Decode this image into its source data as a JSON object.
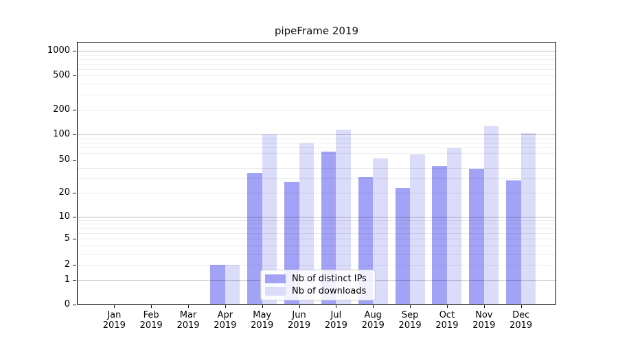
{
  "chart_data": {
    "type": "bar",
    "title": "pipeFrame 2019",
    "categories": [
      "Jan",
      "Feb",
      "Mar",
      "Apr",
      "May",
      "Jun",
      "Jul",
      "Aug",
      "Sep",
      "Oct",
      "Nov",
      "Dec"
    ],
    "year_label": "2019",
    "series": [
      {
        "name": "Nb of distinct IPs",
        "color": "#a2a2f6",
        "values": [
          0,
          0,
          0,
          2,
          35,
          27,
          62,
          31,
          23,
          42,
          39,
          28
        ]
      },
      {
        "name": "Nb of downloads",
        "color": "#dbdbfa",
        "values": [
          0,
          0,
          0,
          2,
          100,
          78,
          116,
          52,
          58,
          69,
          126,
          104
        ]
      }
    ],
    "yticks": [
      0,
      1,
      2,
      5,
      10,
      20,
      50,
      100,
      200,
      500,
      1000
    ],
    "major_gridlines": [
      1,
      10,
      100,
      1000
    ],
    "minor_gridlines": [
      2,
      3,
      4,
      5,
      6,
      7,
      8,
      9,
      20,
      30,
      40,
      60,
      70,
      80,
      90,
      200,
      300,
      400,
      500,
      600,
      700,
      800,
      900
    ],
    "scale": "symlog",
    "ylim": [
      0,
      1276
    ],
    "xlabel": "",
    "ylabel": "",
    "legend_position": "lower-center-inside",
    "grid": true
  }
}
